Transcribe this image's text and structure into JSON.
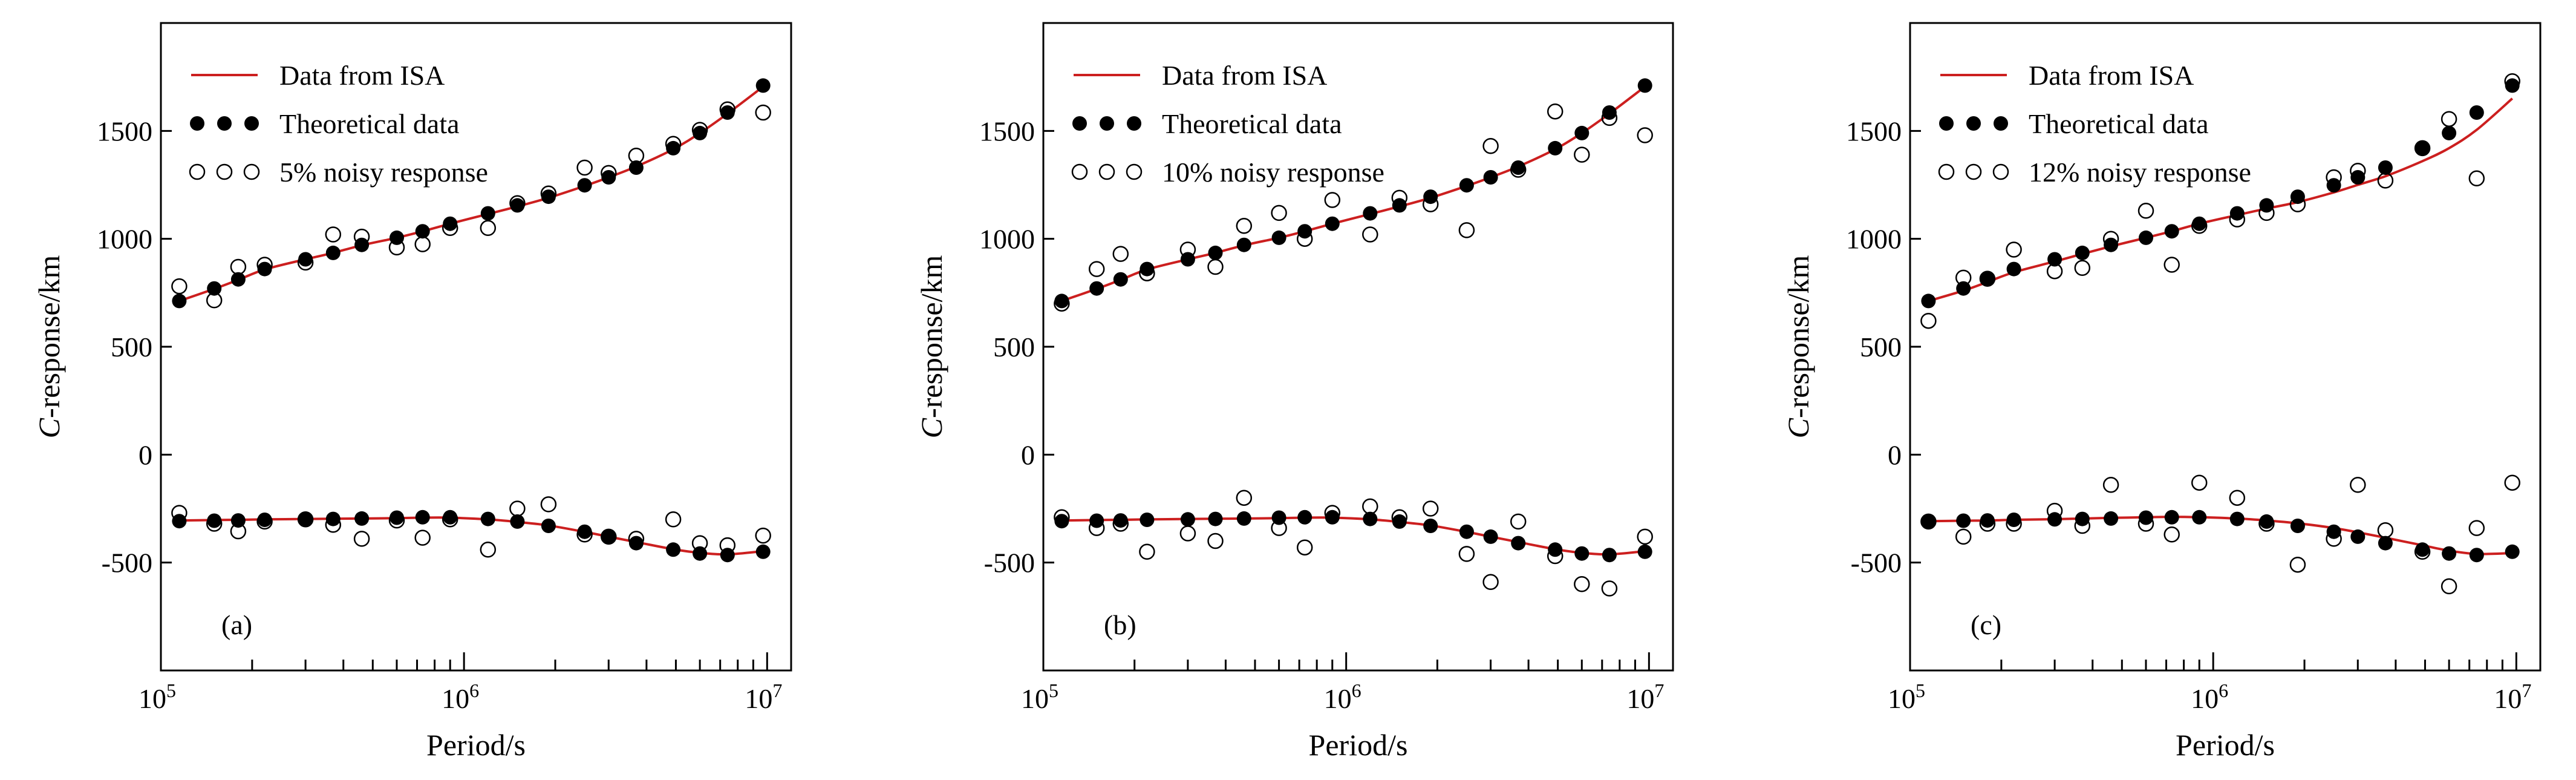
{
  "figure": {
    "colors": {
      "isa_line": "#cc1f1f",
      "theoretical": "#000000",
      "noisy_edge": "#000000",
      "axis": "#000000"
    }
  },
  "chart_data": [
    {
      "type": "line",
      "panel_label": "(a)",
      "xlabel": "Period/s",
      "ylabel_italic": "C",
      "ylabel_rest": "-response/km",
      "xscale": "log",
      "xlim": [
        100000,
        12000000
      ],
      "ylim": [
        -1000,
        2000
      ],
      "xtick_labels": [
        {
          "base": "10",
          "exp": "5",
          "value": 100000
        },
        {
          "base": "10",
          "exp": "6",
          "value": 1000000
        },
        {
          "base": "10",
          "exp": "7",
          "value": 10000000
        }
      ],
      "ytick_values": [
        -500,
        0,
        500,
        1000,
        1500
      ],
      "ytick_labels": [
        "-500",
        "0",
        "500",
        "1000",
        "1500"
      ],
      "legend": {
        "placement": "top-left",
        "entries": [
          "Data from ISA",
          "Theoretical data",
          "5% noisy response"
        ]
      },
      "periods": [
        115000,
        150000,
        180000,
        220000,
        300000,
        370000,
        460000,
        600000,
        730000,
        900000,
        1200000,
        1500000,
        1900000,
        2500000,
        3000000,
        3700000,
        4900000,
        6000000,
        7400000,
        9700000
      ],
      "series": [
        {
          "name": "Data from ISA (real)",
          "role": "isa",
          "values": [
            712,
            768,
            810,
            858,
            905,
            935,
            970,
            1005,
            1035,
            1070,
            1115,
            1150,
            1190,
            1245,
            1285,
            1335,
            1415,
            1490,
            1580,
            1705
          ]
        },
        {
          "name": "Data from ISA (imaginary)",
          "role": "isa",
          "values": [
            -305,
            -303,
            -302,
            -300,
            -298,
            -297,
            -296,
            -294,
            -292,
            -292,
            -300,
            -312,
            -328,
            -358,
            -380,
            -405,
            -438,
            -455,
            -462,
            -447
          ]
        },
        {
          "name": "Theoretical data (real)",
          "role": "theoretical",
          "values": [
            712,
            770,
            812,
            860,
            905,
            935,
            972,
            1005,
            1035,
            1070,
            1118,
            1155,
            1195,
            1248,
            1285,
            1330,
            1420,
            1490,
            1585,
            1710
          ]
        },
        {
          "name": "Theoretical data (imaginary)",
          "role": "theoretical",
          "values": [
            -308,
            -306,
            -305,
            -302,
            -300,
            -298,
            -296,
            -292,
            -290,
            -290,
            -298,
            -310,
            -330,
            -357,
            -380,
            -410,
            -440,
            -458,
            -465,
            -450
          ]
        },
        {
          "name": "5% noisy response (real)",
          "role": "noisy",
          "values": [
            780,
            715,
            870,
            880,
            890,
            1020,
            1010,
            960,
            975,
            1050,
            1050,
            1165,
            1210,
            1330,
            1305,
            1385,
            1440,
            1505,
            1600,
            1585
          ]
        },
        {
          "name": "5% noisy response (imaginary)",
          "role": "noisy",
          "values": [
            -270,
            -320,
            -355,
            -310,
            -300,
            -325,
            -390,
            -305,
            -385,
            -300,
            -440,
            -250,
            -230,
            -370,
            -380,
            -390,
            -300,
            -410,
            -420,
            -375
          ]
        }
      ]
    },
    {
      "type": "line",
      "panel_label": "(b)",
      "xlabel": "Period/s",
      "ylabel_italic": "C",
      "ylabel_rest": "-response/km",
      "xscale": "log",
      "xlim": [
        100000,
        12000000
      ],
      "ylim": [
        -1000,
        2000
      ],
      "xtick_labels": [
        {
          "base": "10",
          "exp": "5",
          "value": 100000
        },
        {
          "base": "10",
          "exp": "6",
          "value": 1000000
        },
        {
          "base": "10",
          "exp": "7",
          "value": 10000000
        }
      ],
      "ytick_values": [
        -500,
        0,
        500,
        1000,
        1500
      ],
      "ytick_labels": [
        "-500",
        "0",
        "500",
        "1000",
        "1500"
      ],
      "legend": {
        "placement": "top-left",
        "entries": [
          "Data from ISA",
          "Theoretical data",
          "10% noisy response"
        ]
      },
      "periods": [
        115000,
        150000,
        180000,
        220000,
        300000,
        370000,
        460000,
        600000,
        730000,
        900000,
        1200000,
        1500000,
        1900000,
        2500000,
        3000000,
        3700000,
        4900000,
        6000000,
        7400000,
        9700000
      ],
      "series": [
        {
          "name": "Data from ISA (real)",
          "role": "isa",
          "values": [
            712,
            768,
            810,
            858,
            905,
            935,
            970,
            1005,
            1035,
            1070,
            1115,
            1150,
            1190,
            1245,
            1285,
            1335,
            1415,
            1490,
            1580,
            1705
          ]
        },
        {
          "name": "Data from ISA (imaginary)",
          "role": "isa",
          "values": [
            -305,
            -303,
            -302,
            -300,
            -298,
            -297,
            -296,
            -294,
            -292,
            -292,
            -300,
            -312,
            -328,
            -358,
            -380,
            -405,
            -438,
            -455,
            -462,
            -447
          ]
        },
        {
          "name": "Theoretical data (real)",
          "role": "theoretical",
          "values": [
            712,
            770,
            812,
            860,
            905,
            935,
            972,
            1005,
            1035,
            1070,
            1118,
            1155,
            1195,
            1248,
            1285,
            1330,
            1420,
            1490,
            1585,
            1710
          ]
        },
        {
          "name": "Theoretical data (imaginary)",
          "role": "theoretical",
          "values": [
            -308,
            -306,
            -305,
            -302,
            -300,
            -298,
            -296,
            -292,
            -290,
            -290,
            -298,
            -310,
            -330,
            -357,
            -380,
            -410,
            -440,
            -458,
            -465,
            -450
          ]
        },
        {
          "name": "10% noisy response (real)",
          "role": "noisy",
          "values": [
            700,
            860,
            930,
            840,
            950,
            870,
            1060,
            1120,
            1000,
            1180,
            1020,
            1190,
            1160,
            1040,
            1430,
            1320,
            1590,
            1390,
            1560,
            1480
          ]
        },
        {
          "name": "10% noisy response (imaginary)",
          "role": "noisy",
          "values": [
            -290,
            -340,
            -320,
            -450,
            -365,
            -400,
            -200,
            -340,
            -430,
            -270,
            -240,
            -290,
            -250,
            -460,
            -590,
            -310,
            -470,
            -600,
            -620,
            -380
          ]
        }
      ]
    },
    {
      "type": "line",
      "panel_label": "(c)",
      "xlabel": "Period/s",
      "ylabel_italic": "C",
      "ylabel_rest": "-response/km",
      "xscale": "log",
      "xlim": [
        100000,
        12000000
      ],
      "ylim": [
        -1000,
        2000
      ],
      "xtick_labels": [
        {
          "base": "10",
          "exp": "5",
          "value": 100000
        },
        {
          "base": "10",
          "exp": "6",
          "value": 1000000
        },
        {
          "base": "10",
          "exp": "7",
          "value": 10000000
        }
      ],
      "ytick_values": [
        -500,
        0,
        500,
        1000,
        1500
      ],
      "ytick_labels": [
        "-500",
        "0",
        "500",
        "1000",
        "1500"
      ],
      "legend": {
        "placement": "top-left",
        "entries": [
          "Data from ISA",
          "Theoretical data",
          "12% noisy response"
        ]
      },
      "periods": [
        115000,
        150000,
        180000,
        220000,
        300000,
        370000,
        460000,
        600000,
        730000,
        900000,
        1200000,
        1500000,
        1900000,
        2500000,
        3000000,
        3700000,
        4900000,
        6000000,
        7400000,
        9700000
      ],
      "series": [
        {
          "name": "Data from ISA (real)",
          "role": "isa",
          "values": [
            712,
            760,
            800,
            845,
            895,
            930,
            965,
            1005,
            1035,
            1070,
            1110,
            1140,
            1170,
            1215,
            1250,
            1290,
            1360,
            1420,
            1505,
            1650
          ]
        },
        {
          "name": "Data from ISA (imaginary)",
          "role": "isa",
          "values": [
            -308,
            -306,
            -305,
            -302,
            -299,
            -296,
            -293,
            -290,
            -288,
            -290,
            -296,
            -305,
            -318,
            -340,
            -360,
            -385,
            -420,
            -445,
            -460,
            -456
          ]
        },
        {
          "name": "Theoretical data (real)",
          "role": "theoretical",
          "values": [
            712,
            770,
            812,
            860,
            905,
            935,
            972,
            1005,
            1035,
            1070,
            1118,
            1155,
            1195,
            1248,
            1285,
            1330,
            1420,
            1490,
            1585,
            1710
          ]
        },
        {
          "name": "Theoretical data (imaginary)",
          "role": "theoretical",
          "values": [
            -308,
            -306,
            -305,
            -302,
            -300,
            -298,
            -296,
            -292,
            -290,
            -290,
            -298,
            -310,
            -330,
            -357,
            -380,
            -410,
            -440,
            -458,
            -465,
            -450
          ]
        },
        {
          "name": "12% noisy response (real)",
          "role": "noisy",
          "values": [
            620,
            820,
            815,
            950,
            850,
            865,
            1000,
            1130,
            880,
            1060,
            1090,
            1120,
            1160,
            1285,
            1315,
            1270,
            1420,
            1555,
            1280,
            1730
          ]
        },
        {
          "name": "12% noisy response (imaginary)",
          "role": "noisy",
          "values": [
            -310,
            -380,
            -320,
            -320,
            -260,
            -330,
            -140,
            -320,
            -370,
            -130,
            -200,
            -320,
            -510,
            -390,
            -140,
            -350,
            -450,
            -610,
            -340,
            -130
          ]
        }
      ]
    }
  ]
}
